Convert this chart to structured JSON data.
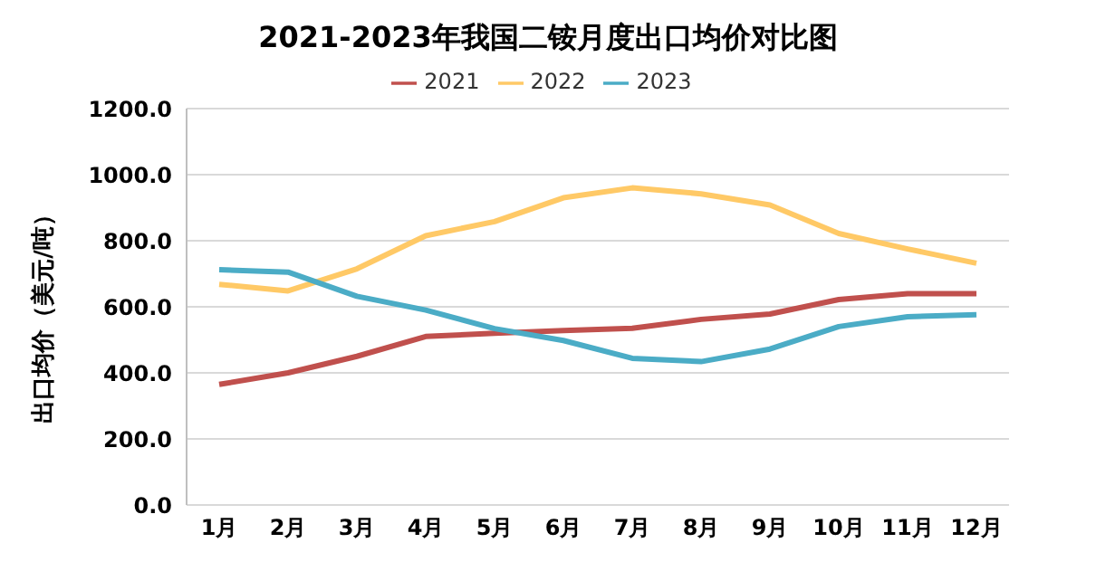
{
  "chart_data": {
    "type": "line",
    "title": "2021-2023年我国二铵月度出口均价对比图",
    "ylabel": "出口均价（美元/吨）",
    "categories": [
      "1月",
      "2月",
      "3月",
      "4月",
      "5月",
      "6月",
      "7月",
      "8月",
      "9月",
      "10月",
      "11月",
      "12月"
    ],
    "series": [
      {
        "name": "2021",
        "color": "#c0504d",
        "values": [
          365,
          400,
          450,
          510,
          520,
          528,
          535,
          562,
          578,
          622,
          640,
          640
        ]
      },
      {
        "name": "2022",
        "color": "#ffc966",
        "values": [
          668,
          648,
          715,
          815,
          858,
          930,
          960,
          942,
          908,
          822,
          775,
          732
        ]
      },
      {
        "name": "2023",
        "color": "#4bacc6",
        "values": [
          712,
          705,
          632,
          590,
          534,
          498,
          444,
          434,
          472,
          540,
          570,
          576
        ]
      }
    ],
    "ylim": [
      0,
      1200
    ],
    "yticks": [
      {
        "value": 0,
        "label": "0.0"
      },
      {
        "value": 200,
        "label": "200.0"
      },
      {
        "value": 400,
        "label": "400.0"
      },
      {
        "value": 600,
        "label": "600.0"
      },
      {
        "value": 800,
        "label": "800.0"
      },
      {
        "value": 1000,
        "label": "1000.0"
      },
      {
        "value": 1200,
        "label": "1200.0"
      }
    ],
    "grid": "y",
    "legend": "top",
    "marker": "none"
  }
}
